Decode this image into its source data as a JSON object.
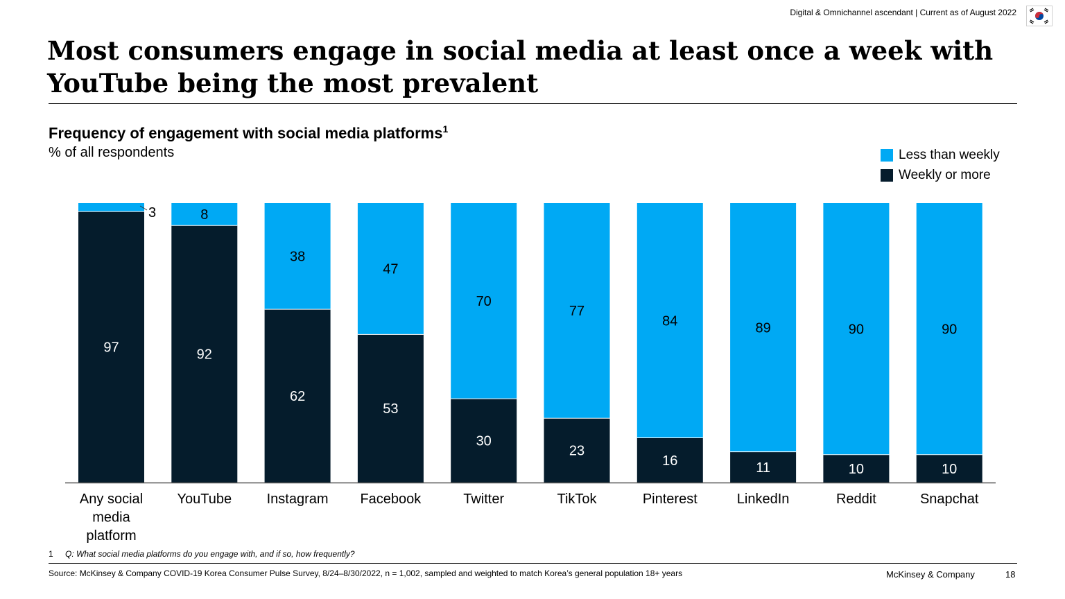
{
  "header": {
    "note": "Digital & Omnichannel ascendant | Current as of August 2022",
    "flag": "south-korea-flag"
  },
  "slide_title": "Most consumers engage in social media at least once a week with YouTube being the most prevalent",
  "colors": {
    "less_than_weekly": "#00A9F4",
    "weekly_or_more": "#051C2C"
  },
  "chart_data": {
    "type": "bar",
    "stacked": true,
    "title": "Frequency of engagement with social media platforms",
    "title_footnote_marker": "1",
    "subtitle": "% of all respondents",
    "categories": [
      "Any social media platform",
      "YouTube",
      "Instagram",
      "Facebook",
      "Twitter",
      "TikTok",
      "Pinterest",
      "LinkedIn",
      "Reddit",
      "Snapchat"
    ],
    "category_lines": [
      [
        "Any social",
        "media",
        "platform"
      ],
      [
        "YouTube"
      ],
      [
        "Instagram"
      ],
      [
        "Facebook"
      ],
      [
        "Twitter"
      ],
      [
        "TikTok"
      ],
      [
        "Pinterest"
      ],
      [
        "LinkedIn"
      ],
      [
        "Reddit"
      ],
      [
        "Snapchat"
      ]
    ],
    "series": [
      {
        "name": "Weekly or more",
        "values": [
          97,
          92,
          62,
          53,
          30,
          23,
          16,
          11,
          10,
          10
        ]
      },
      {
        "name": "Less than weekly",
        "values": [
          3,
          8,
          38,
          47,
          70,
          77,
          84,
          89,
          90,
          90
        ]
      }
    ],
    "ylim": [
      0,
      100
    ],
    "legend": [
      "Less than weekly",
      "Weekly or more"
    ],
    "legend_position": "top-right",
    "xlabel": "",
    "ylabel": ""
  },
  "footnote": {
    "marker": "1",
    "text": "Q: What social media platforms do you engage with, and if so, how frequently?"
  },
  "source": "Source: McKinsey & Company COVID-19 Korea Consumer Pulse Survey, 8/24–8/30/2022, n = 1,002, sampled and weighted to match Korea’s general population 18+ years",
  "brand": "McKinsey & Company",
  "page_number": "18"
}
